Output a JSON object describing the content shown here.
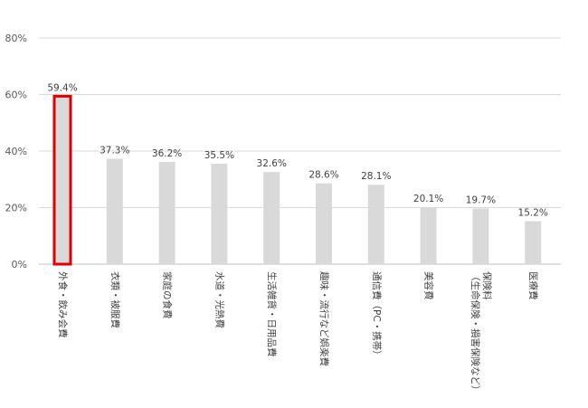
{
  "chart_data": {
    "type": "bar",
    "categories": [
      "外食・飲み会費",
      "衣類・被服費",
      "家庭の食費",
      "水道・光熱費",
      "生活雑貨・日用品費",
      "趣味・流行など娯楽費",
      "通信費（PC・携帯）",
      "美容費",
      "保険料（生命保険・損害保険など）",
      "医療費"
    ],
    "category_lines": [
      [
        "外食・飲み会費"
      ],
      [
        "衣類・被服費"
      ],
      [
        "家庭の食費"
      ],
      [
        "水道・光熱費"
      ],
      [
        "生活雑貨・日用品費"
      ],
      [
        "趣味・流行など娯楽費"
      ],
      [
        "通信費（PC・携帯）"
      ],
      [
        "美容費"
      ],
      [
        "保険料",
        "（生命保険・損害保険など）"
      ],
      [
        "医療費"
      ]
    ],
    "values": [
      59.4,
      37.3,
      36.2,
      35.5,
      32.6,
      28.6,
      28.1,
      20.1,
      19.7,
      15.2
    ],
    "data_labels": [
      "59.4%",
      "37.3%",
      "36.2%",
      "35.5%",
      "32.6%",
      "28.6%",
      "28.1%",
      "20.1%",
      "19.7%",
      "15.2%"
    ],
    "yticks": [
      0,
      20,
      40,
      60,
      80
    ],
    "ytick_labels": [
      "0%",
      "20%",
      "40%",
      "60%",
      "80%"
    ],
    "ylim": [
      0,
      80
    ],
    "grid": true,
    "highlight_index": 0,
    "colors": {
      "bar": "#d9d9d9",
      "highlight_border": "#e00000",
      "grid": "#d9d9d9",
      "axis": "#bfbfbf"
    },
    "title": "",
    "xlabel": "",
    "ylabel": ""
  }
}
